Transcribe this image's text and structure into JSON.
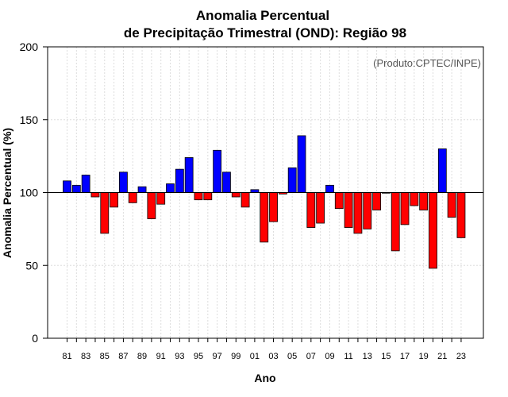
{
  "chart_data": {
    "type": "bar",
    "title": "Anomalia Percentual",
    "subtitle": "de Precipitação Trimestral (OND): Região 98",
    "xlabel": "Ano",
    "ylabel": "Anomalia Percentual (%)",
    "credit": "(Produto:CPTEC/INPE)",
    "baseline": 100,
    "ylim": [
      0,
      200
    ],
    "yticks": [
      0,
      50,
      100,
      150,
      200
    ],
    "xtick_labels": [
      "81",
      "83",
      "85",
      "87",
      "89",
      "91",
      "93",
      "95",
      "97",
      "99",
      "01",
      "03",
      "05",
      "07",
      "09",
      "11",
      "13",
      "15",
      "17",
      "19",
      "21",
      "23"
    ],
    "years": [
      1981,
      1982,
      1983,
      1984,
      1985,
      1986,
      1987,
      1988,
      1989,
      1990,
      1991,
      1992,
      1993,
      1994,
      1995,
      1996,
      1997,
      1998,
      1999,
      2000,
      2001,
      2002,
      2003,
      2004,
      2005,
      2006,
      2007,
      2008,
      2009,
      2010,
      2011,
      2012,
      2013,
      2014,
      2015,
      2016,
      2017,
      2018,
      2019,
      2020,
      2021,
      2022,
      2023
    ],
    "values": [
      108,
      105,
      112,
      97,
      72,
      90,
      114,
      93,
      104,
      82,
      92,
      106,
      116,
      124,
      95,
      95,
      129,
      114,
      97,
      90,
      102,
      66,
      80,
      99,
      117,
      139,
      76,
      79,
      105,
      89,
      76,
      72,
      75,
      88,
      100,
      60,
      78,
      91,
      88,
      48,
      130,
      83,
      69
    ],
    "positive_color": "#0000ff",
    "negative_color": "#ff0000",
    "grid": true
  }
}
